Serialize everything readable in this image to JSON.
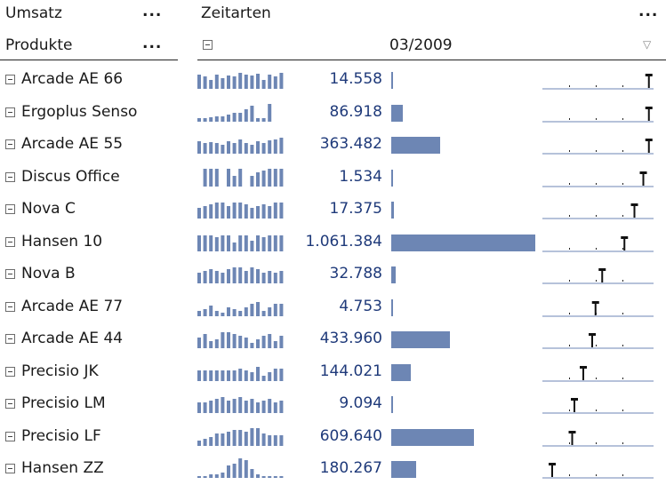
{
  "header": {
    "measure_label": "Umsatz",
    "measure_menu": "...",
    "dimension_label": "Zeitarten",
    "dimension_menu": "...",
    "rows_label": "Produkte",
    "rows_menu": "...",
    "period_label": "03/2009",
    "filter_icon": "▽"
  },
  "colors": {
    "bar": "#6d86b4",
    "value_text": "#1f3a7a",
    "axis": "#6d86b4"
  },
  "rows": [
    {
      "name": "Arcade AE 66",
      "value": "14.558",
      "amount": 14558,
      "spark": [
        16,
        14,
        10,
        16,
        12,
        15,
        14,
        18,
        16,
        15,
        17,
        10,
        16,
        14,
        18
      ],
      "marker": 0.95
    },
    {
      "name": "Ergoplus Senso",
      "value": "86.918",
      "amount": 86918,
      "spark": [
        4,
        4,
        5,
        6,
        6,
        8,
        10,
        10,
        14,
        18,
        4,
        4,
        20
      ],
      "marker": 0.95
    },
    {
      "name": "Arcade AE 55",
      "value": "363.482",
      "amount": 363482,
      "spark": [
        14,
        12,
        13,
        12,
        10,
        14,
        12,
        16,
        12,
        10,
        14,
        12,
        15,
        16,
        18
      ],
      "marker": 0.95
    },
    {
      "name": "Discus Office",
      "value": "1.534",
      "amount": 1534,
      "spark": [
        0,
        20,
        20,
        20,
        0,
        20,
        12,
        20,
        0,
        12,
        16,
        18,
        20,
        20,
        20
      ],
      "marker": 0.9
    },
    {
      "name": "Nova C",
      "value": "17.375",
      "amount": 17375,
      "spark": [
        12,
        14,
        16,
        18,
        18,
        14,
        18,
        18,
        16,
        12,
        14,
        16,
        14,
        18,
        18
      ],
      "marker": 0.82
    },
    {
      "name": "Hansen 10",
      "value": "1.061.384",
      "amount": 1061384,
      "spark": [
        18,
        18,
        18,
        16,
        18,
        18,
        10,
        18,
        18,
        12,
        18,
        16,
        18,
        18,
        18
      ],
      "marker": 0.73
    },
    {
      "name": "Nova B",
      "value": "32.788",
      "amount": 32788,
      "spark": [
        12,
        14,
        16,
        14,
        12,
        16,
        18,
        18,
        14,
        18,
        16,
        12,
        14,
        12,
        14
      ],
      "marker": 0.53
    },
    {
      "name": "Arcade AE 77",
      "value": "4.753",
      "amount": 4753,
      "spark": [
        6,
        8,
        12,
        6,
        4,
        10,
        8,
        6,
        10,
        14,
        16,
        6,
        10,
        14,
        14
      ],
      "marker": 0.47
    },
    {
      "name": "Arcade AE 44",
      "value": "433.960",
      "amount": 433960,
      "spark": [
        12,
        16,
        8,
        10,
        18,
        18,
        16,
        14,
        12,
        6,
        10,
        14,
        16,
        8,
        14
      ],
      "marker": 0.44
    },
    {
      "name": "Precisio JK",
      "value": "144.021",
      "amount": 144021,
      "spark": [
        12,
        12,
        12,
        12,
        12,
        12,
        12,
        14,
        12,
        10,
        16,
        6,
        10,
        14,
        14
      ],
      "marker": 0.36
    },
    {
      "name": "Precisio LM",
      "value": "9.094",
      "amount": 9094,
      "spark": [
        12,
        12,
        14,
        16,
        18,
        14,
        16,
        18,
        14,
        16,
        12,
        14,
        16,
        12,
        14
      ],
      "marker": 0.28
    },
    {
      "name": "Precisio LF",
      "value": "609.640",
      "amount": 609640,
      "spark": [
        6,
        8,
        10,
        14,
        14,
        16,
        18,
        18,
        16,
        20,
        20,
        14,
        12,
        12,
        12
      ],
      "marker": 0.26
    },
    {
      "name": "Hansen ZZ",
      "value": "180.267",
      "amount": 180267,
      "spark": [
        2,
        2,
        4,
        4,
        6,
        14,
        16,
        22,
        20,
        10,
        4,
        2,
        2,
        2,
        2
      ],
      "marker": 0.08
    }
  ]
}
